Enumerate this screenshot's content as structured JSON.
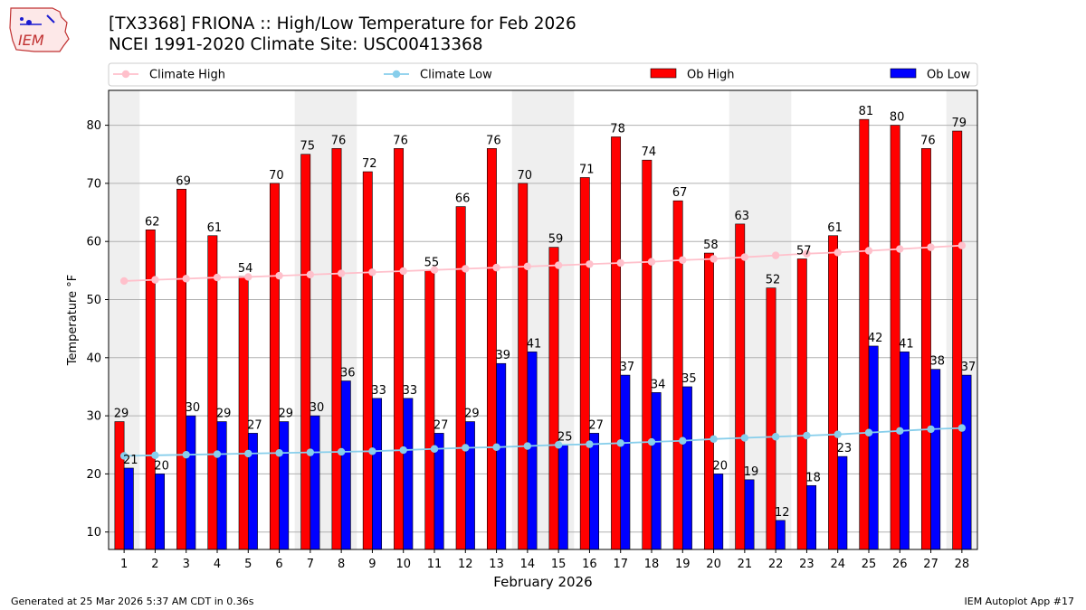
{
  "header": {
    "title_line1": "[TX3368] FRIONA :: High/Low Temperature for Feb 2026",
    "title_line2": "NCEI 1991-2020 Climate Site: USC00413368",
    "logo_text": "IEM"
  },
  "footer": {
    "generated": "Generated at 25 Mar 2026 5:37 AM CDT in 0.36s",
    "app": "IEM Autoplot App #17"
  },
  "chart_data": {
    "type": "bar",
    "xlabel": "February 2026",
    "ylabel": "Temperature °F",
    "ylim": [
      7,
      86
    ],
    "yticks": [
      10,
      20,
      30,
      40,
      50,
      60,
      70,
      80
    ],
    "categories": [
      "1",
      "2",
      "3",
      "4",
      "5",
      "6",
      "7",
      "8",
      "9",
      "10",
      "11",
      "12",
      "13",
      "14",
      "15",
      "16",
      "17",
      "18",
      "19",
      "20",
      "21",
      "22",
      "23",
      "24",
      "25",
      "26",
      "27",
      "28"
    ],
    "weekend_days": [
      1,
      7,
      8,
      14,
      15,
      21,
      22,
      28
    ],
    "grid": true,
    "legend_position": "top",
    "series": [
      {
        "name": "Climate High",
        "kind": "line",
        "color": "#ffc0cb",
        "values": [
          53.2,
          53.4,
          53.6,
          53.8,
          53.9,
          54.1,
          54.3,
          54.5,
          54.7,
          54.9,
          55.1,
          55.3,
          55.5,
          55.7,
          55.9,
          56.1,
          56.3,
          56.5,
          56.8,
          57.0,
          57.3,
          57.6,
          57.9,
          58.1,
          58.4,
          58.7,
          59.0,
          59.3
        ]
      },
      {
        "name": "Climate Low",
        "kind": "line",
        "color": "#87ceeb",
        "values": [
          23.1,
          23.2,
          23.3,
          23.4,
          23.5,
          23.6,
          23.7,
          23.8,
          23.9,
          24.1,
          24.3,
          24.5,
          24.6,
          24.8,
          25.0,
          25.1,
          25.3,
          25.5,
          25.7,
          26.0,
          26.2,
          26.4,
          26.6,
          26.8,
          27.1,
          27.4,
          27.7,
          27.9
        ]
      },
      {
        "name": "Ob High",
        "kind": "bar",
        "color": "#ff0000",
        "values": [
          29,
          62,
          69,
          61,
          54,
          70,
          75,
          76,
          72,
          76,
          55,
          66,
          76,
          70,
          59,
          71,
          78,
          74,
          67,
          58,
          63,
          52,
          57,
          61,
          81,
          80,
          76,
          79
        ]
      },
      {
        "name": "Ob Low",
        "kind": "bar",
        "color": "#0000ff",
        "values": [
          21,
          20,
          30,
          29,
          27,
          29,
          30,
          36,
          33,
          33,
          27,
          29,
          39,
          41,
          25,
          27,
          37,
          34,
          35,
          20,
          19,
          12,
          18,
          23,
          42,
          41,
          38,
          37
        ]
      }
    ]
  }
}
